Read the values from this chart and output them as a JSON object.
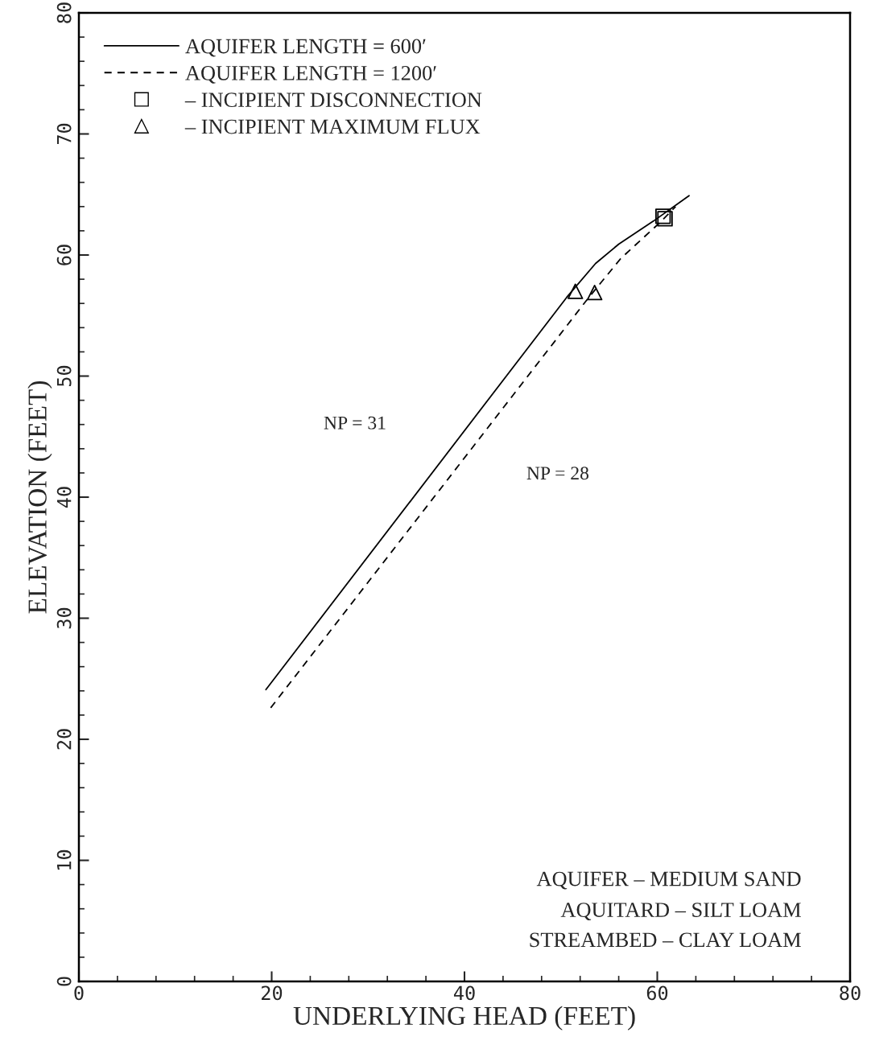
{
  "chart_data": {
    "type": "line",
    "xlabel": "UNDERLYING HEAD (FEET)",
    "ylabel": "ELEVATION (FEET)",
    "xlim": [
      0,
      80
    ],
    "ylim": [
      0,
      80
    ],
    "xticks": [
      0,
      20,
      40,
      60,
      80
    ],
    "yticks": [
      0,
      10,
      20,
      30,
      40,
      50,
      60,
      70,
      80
    ],
    "grid": false,
    "legend": "top left",
    "series": [
      {
        "name": "AQUIFER LENGTH = 600′",
        "color": "#000000",
        "line_style": "solid",
        "marker": "none",
        "x": [
          19.4,
          50.6,
          53.6,
          56.0,
          59.6,
          63.3
        ],
        "values": [
          24.1,
          56.5,
          59.3,
          60.9,
          62.8,
          64.9
        ]
      },
      {
        "name": "AQUIFER LENGTH = 1200′",
        "color": "#000000",
        "line_style": "dashed",
        "marker": "none",
        "x": [
          19.9,
          52.8,
          56.2,
          60.3,
          61.9
        ],
        "values": [
          22.6,
          56.4,
          59.7,
          62.7,
          64.0
        ]
      },
      {
        "name": "– INCIPIENT DISCONNECTION",
        "type": "scatter",
        "color": "#000000",
        "marker": "square",
        "x": [
          60.6,
          60.8
        ],
        "values": [
          63.2,
          63.0
        ]
      },
      {
        "name": "– INCIPIENT MAXIMUM FLUX",
        "type": "scatter",
        "color": "#000000",
        "marker": "triangle",
        "x": [
          51.5,
          53.5
        ],
        "values": [
          57.0,
          56.9
        ]
      }
    ],
    "annotations": [
      "NP = 31",
      "NP = 28",
      "AQUIFER – MEDIUM SAND",
      "AQUITARD – SILT LOAM",
      "STREAMBED – CLAY LOAM"
    ]
  }
}
